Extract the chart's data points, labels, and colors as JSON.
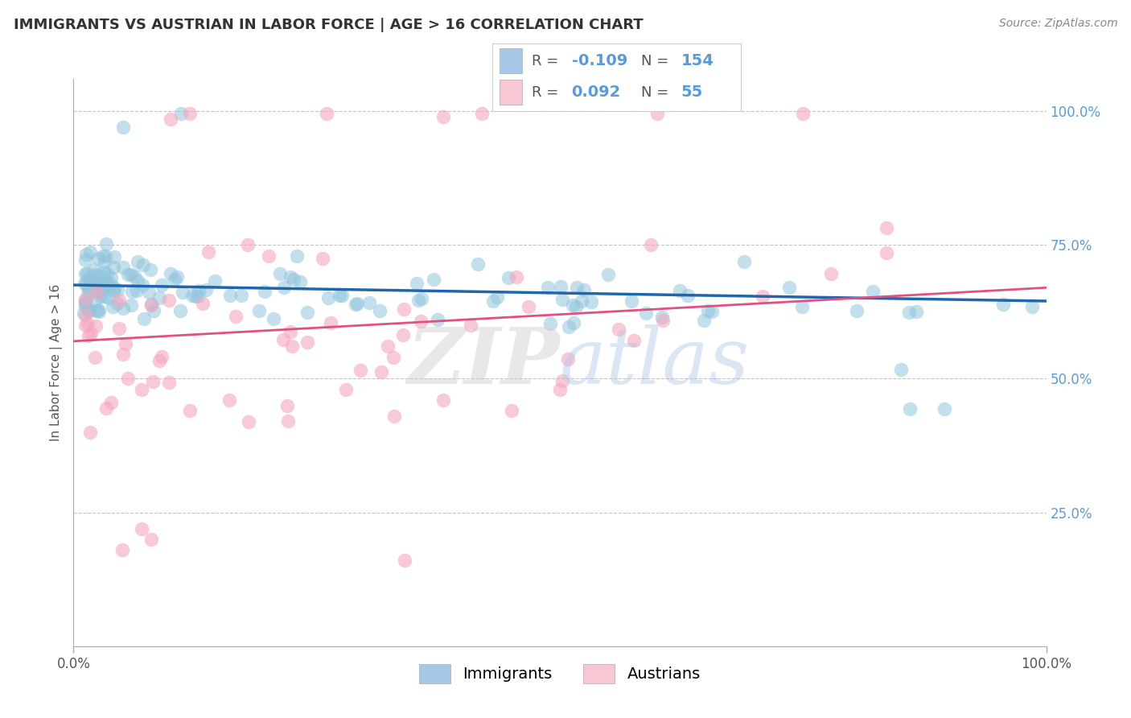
{
  "title": "IMMIGRANTS VS AUSTRIAN IN LABOR FORCE | AGE > 16 CORRELATION CHART",
  "source": "Source: ZipAtlas.com",
  "ylabel": "In Labor Force | Age > 16",
  "watermark_part1": "ZIP",
  "watermark_part2": "atlas",
  "blue_scatter_color": "#92c5de",
  "blue_line_color": "#2166ac",
  "pink_scatter_color": "#f4a6bd",
  "pink_line_color": "#e05080",
  "blue_fill": "#a8c8e8",
  "pink_fill": "#f7c8d4",
  "R_imm": -0.109,
  "N_imm": 154,
  "R_aus": 0.092,
  "N_aus": 55,
  "yticks": [
    0.25,
    0.5,
    0.75,
    1.0
  ],
  "ytick_labels": [
    "25.0%",
    "50.0%",
    "75.0%",
    "100.0%"
  ],
  "background_color": "#ffffff",
  "grid_color": "#aaaaaa",
  "title_fontsize": 13,
  "source_fontsize": 10,
  "tick_label_fontsize": 12,
  "legend_fontsize": 14,
  "imm_slope": -0.03,
  "imm_intercept": 0.675,
  "aus_slope": 0.1,
  "aus_intercept": 0.57
}
